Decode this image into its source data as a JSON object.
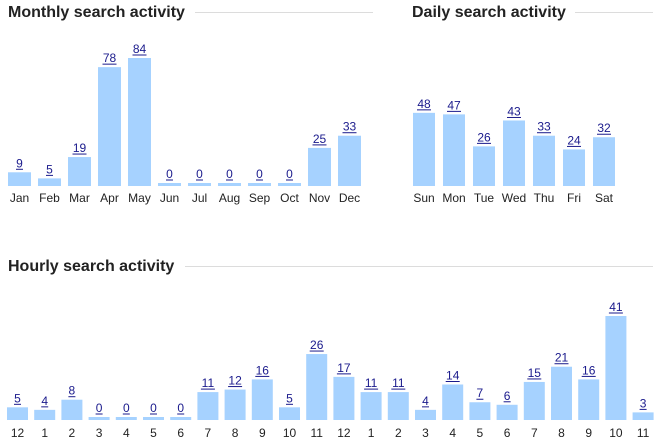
{
  "chart_data": [
    {
      "type": "bar",
      "title": "Monthly search activity",
      "categories": [
        "Jan",
        "Feb",
        "Mar",
        "Apr",
        "May",
        "Jun",
        "Jul",
        "Aug",
        "Sep",
        "Oct",
        "Nov",
        "Dec"
      ],
      "values": [
        9,
        5,
        19,
        78,
        84,
        0,
        0,
        0,
        0,
        0,
        25,
        33
      ],
      "ylim": [
        0,
        84
      ],
      "grid": false,
      "bar_color": "#a6d2ff",
      "label_color": "#1a1a8c"
    },
    {
      "type": "bar",
      "title": "Daily search activity",
      "categories": [
        "Sun",
        "Mon",
        "Tue",
        "Wed",
        "Thu",
        "Fri",
        "Sat"
      ],
      "values": [
        48,
        47,
        26,
        43,
        33,
        24,
        32
      ],
      "ylim": [
        0,
        84
      ],
      "grid": false,
      "bar_color": "#a6d2ff",
      "label_color": "#1a1a8c"
    },
    {
      "type": "bar",
      "title": "Hourly search activity",
      "categories": [
        "12",
        "1",
        "2",
        "3",
        "4",
        "5",
        "6",
        "7",
        "8",
        "9",
        "10",
        "11",
        "12",
        "1",
        "2",
        "3",
        "4",
        "5",
        "6",
        "7",
        "8",
        "9",
        "10",
        "11"
      ],
      "values": [
        5,
        4,
        8,
        0,
        0,
        0,
        0,
        11,
        12,
        16,
        5,
        26,
        17,
        11,
        11,
        4,
        14,
        7,
        6,
        15,
        21,
        16,
        41,
        3
      ],
      "ylim": [
        0,
        41
      ],
      "grid": false,
      "bar_color": "#a6d2ff",
      "label_color": "#1a1a8c"
    }
  ]
}
